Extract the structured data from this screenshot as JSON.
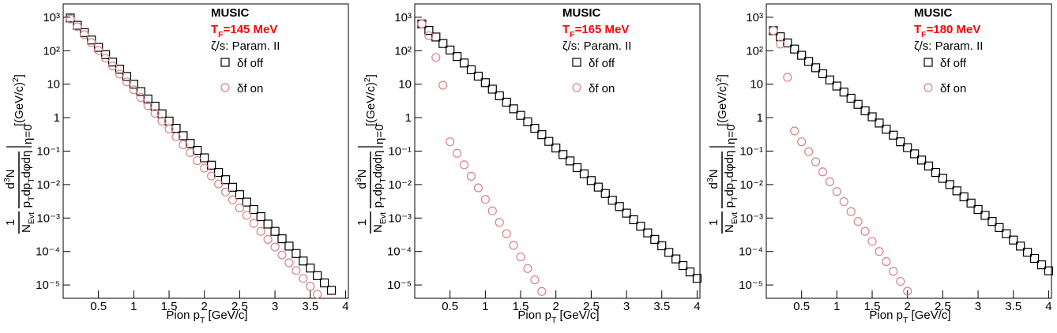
{
  "chart_data": [
    {
      "type": "scatter",
      "log_y": true,
      "title": "MUSIC",
      "temperature": {
        "symbol": "T",
        "subscript": "F",
        "text": "=145 MeV",
        "color": "#ff0000"
      },
      "viscosity": "ζ/s: Param. II",
      "x_label": {
        "text": "Pion p",
        "subscript": "T",
        "unit": " [GeV/c]"
      },
      "y_label": {
        "one": "1",
        "n": "N",
        "n_sub": "Evt",
        "d": "d",
        "d_sup": "3",
        "d_n": "N",
        "p": "p",
        "p_sub": "T",
        "dp": "dp",
        "dp_sub": "T",
        "angles": "dφdη",
        "eval": "η=0",
        "unit": "[(GeV/c)",
        "unit_sup": "2",
        "unit_end": "]"
      },
      "xlim": [
        0,
        4.04
      ],
      "ylim": [
        4e-06,
        2500
      ],
      "xticks": [
        0.5,
        1,
        1.5,
        2,
        2.5,
        3,
        3.5,
        4
      ],
      "yticks": [
        {
          "value": 1000,
          "label": "10³"
        },
        {
          "value": 100,
          "label": "10²"
        },
        10,
        1,
        {
          "value": 0.1,
          "label": "10⁻¹"
        },
        {
          "value": 0.01,
          "label": "10⁻²"
        },
        {
          "value": 0.001,
          "label": "10⁻³"
        },
        {
          "value": 0.0001,
          "label": "10⁻⁴"
        },
        {
          "value": 1e-05,
          "label": "10⁻⁵"
        }
      ],
      "x": [
        0.1,
        0.2,
        0.3,
        0.4,
        0.5,
        0.6,
        0.7,
        0.8,
        0.9,
        1.0,
        1.1,
        1.2,
        1.3,
        1.4,
        1.5,
        1.6,
        1.7,
        1.8,
        1.9,
        2.0,
        2.1,
        2.2,
        2.3,
        2.4,
        2.5,
        2.6,
        2.7,
        2.8,
        2.9,
        3.0,
        3.1,
        3.2,
        3.3,
        3.4,
        3.5,
        3.6,
        3.7,
        3.8
      ],
      "series": [
        {
          "name": "δf off",
          "marker": "square",
          "color": "#000000",
          "values": [
            950,
            575,
            347,
            209,
            126,
            76,
            46,
            28,
            17,
            10,
            6.0,
            3.6,
            2.2,
            1.3,
            0.79,
            0.48,
            0.29,
            0.17,
            0.105,
            0.063,
            0.038,
            0.023,
            0.014,
            0.0083,
            0.005,
            0.003,
            0.0018,
            0.0011,
            0.00066,
            0.0004,
            0.00024,
            0.000145,
            8.7e-05,
            5.2e-05,
            3.2e-05,
            1.9e-05,
            1.15e-05,
            6.9e-06
          ]
        },
        {
          "name": "δf on",
          "marker": "circle",
          "color": "#d9808a",
          "values": [
            891,
            519,
            302,
            176,
            102,
            60,
            35,
            20,
            11.7,
            6.8,
            4.0,
            2.3,
            1.35,
            0.79,
            0.46,
            0.27,
            0.155,
            0.09,
            0.052,
            0.031,
            0.018,
            0.0104,
            0.006,
            0.0035,
            0.002,
            0.0012,
            0.00069,
            0.0004,
            0.00023,
            0.000136,
            7.9e-05,
            4.6e-05,
            2.7e-05,
            1.57e-05,
            9.1e-06,
            5.3e-06,
            null,
            null
          ]
        }
      ]
    },
    {
      "type": "scatter",
      "log_y": true,
      "title": "MUSIC",
      "temperature": {
        "symbol": "T",
        "subscript": "F",
        "text": "=165 MeV",
        "color": "#ff0000"
      },
      "viscosity": "ζ/s: Param. II",
      "x_label": {
        "text": "Pion p",
        "subscript": "T",
        "unit": " [GeV/c]"
      },
      "y_label": {
        "one": "1",
        "n": "N",
        "n_sub": "Evt",
        "d": "d",
        "d_sup": "3",
        "d_n": "N",
        "p": "p",
        "p_sub": "T",
        "dp": "dp",
        "dp_sub": "T",
        "angles": "dφdη",
        "eval": "η=0",
        "unit": "[(GeV/c)",
        "unit_sup": "2",
        "unit_end": "]"
      },
      "xlim": [
        0,
        4.04
      ],
      "ylim": [
        4e-06,
        2500
      ],
      "xticks": [
        0.5,
        1,
        1.5,
        2,
        2.5,
        3,
        3.5,
        4
      ],
      "yticks": [
        {
          "value": 1000,
          "label": "10³"
        },
        {
          "value": 100,
          "label": "10²"
        },
        10,
        1,
        {
          "value": 0.1,
          "label": "10⁻¹"
        },
        {
          "value": 0.01,
          "label": "10⁻²"
        },
        {
          "value": 0.001,
          "label": "10⁻³"
        },
        {
          "value": 0.0001,
          "label": "10⁻⁴"
        },
        {
          "value": 1e-05,
          "label": "10⁻⁵"
        }
      ],
      "x": [
        0.1,
        0.2,
        0.3,
        0.4,
        0.5,
        0.6,
        0.7,
        0.8,
        0.9,
        1.0,
        1.1,
        1.2,
        1.3,
        1.4,
        1.5,
        1.6,
        1.7,
        1.8,
        1.9,
        2.0,
        2.1,
        2.2,
        2.3,
        2.4,
        2.5,
        2.6,
        2.7,
        2.8,
        2.9,
        3.0,
        3.1,
        3.2,
        3.3,
        3.4,
        3.5,
        3.6,
        3.7,
        3.8,
        3.9,
        4.0
      ],
      "series": [
        {
          "name": "δf off",
          "marker": "square",
          "color": "#000000",
          "values": [
            631,
            403,
            257,
            164,
            105,
            67,
            43,
            27,
            17.4,
            11.1,
            7.1,
            4.5,
            2.9,
            1.84,
            1.17,
            0.75,
            0.48,
            0.31,
            0.195,
            0.124,
            0.079,
            0.051,
            0.032,
            0.021,
            0.0132,
            0.0084,
            0.0054,
            0.0034,
            0.0022,
            0.0014,
            0.00089,
            0.00057,
            0.00036,
            0.00023,
            0.000148,
            9.4e-05,
            6e-05,
            3.8e-05,
            2.45e-05,
            1.57e-05
          ]
        },
        {
          "name": "δf on",
          "marker": "circle",
          "color": "#d9808a",
          "values": [
            631,
            282,
            63,
            9.3,
            0.19,
            0.086,
            0.039,
            0.0177,
            0.008,
            0.0036,
            0.00164,
            0.00074,
            0.00034,
            0.000153,
            6.9e-05,
            3.1e-05,
            1.42e-05,
            6.4e-06,
            null,
            null,
            null,
            null,
            null,
            null,
            null,
            null,
            null,
            null,
            null,
            null,
            null,
            null,
            null,
            null,
            null,
            null,
            null,
            null,
            null,
            null
          ]
        }
      ]
    },
    {
      "type": "scatter",
      "log_y": true,
      "title": "MUSIC",
      "temperature": {
        "symbol": "T",
        "subscript": "F",
        "text": "=180 MeV",
        "color": "#ff0000"
      },
      "viscosity": "ζ/s: Param. II",
      "x_label": {
        "text": "Pion p",
        "subscript": "T",
        "unit": " [GeV/c]"
      },
      "y_label": {
        "one": "1",
        "n": "N",
        "n_sub": "Evt",
        "d": "d",
        "d_sup": "3",
        "d_n": "N",
        "p": "p",
        "p_sub": "T",
        "dp": "dp",
        "dp_sub": "T",
        "angles": "dφdη",
        "eval": "η=0",
        "unit": "[(GeV/c)",
        "unit_sup": "2",
        "unit_end": "]"
      },
      "xlim": [
        0,
        4.04
      ],
      "ylim": [
        4e-06,
        2500
      ],
      "xticks": [
        0.5,
        1,
        1.5,
        2,
        2.5,
        3,
        3.5,
        4
      ],
      "yticks": [
        {
          "value": 1000,
          "label": "10³"
        },
        {
          "value": 100,
          "label": "10²"
        },
        10,
        1,
        {
          "value": 0.1,
          "label": "10⁻¹"
        },
        {
          "value": 0.01,
          "label": "10⁻²"
        },
        {
          "value": 0.001,
          "label": "10⁻³"
        },
        {
          "value": 0.0001,
          "label": "10⁻⁴"
        },
        {
          "value": 1e-05,
          "label": "10⁻⁵"
        }
      ],
      "x": [
        0.1,
        0.2,
        0.3,
        0.4,
        0.5,
        0.6,
        0.7,
        0.8,
        0.9,
        1.0,
        1.1,
        1.2,
        1.3,
        1.4,
        1.5,
        1.6,
        1.7,
        1.8,
        1.9,
        2.0,
        2.1,
        2.2,
        2.3,
        2.4,
        2.5,
        2.6,
        2.7,
        2.8,
        2.9,
        3.0,
        3.1,
        3.2,
        3.3,
        3.4,
        3.5,
        3.6,
        3.7,
        3.8,
        3.9,
        4.0
      ],
      "series": [
        {
          "name": "δf off",
          "marker": "square",
          "color": "#000000",
          "values": [
            398,
            261,
            171,
            112,
            73,
            48,
            31,
            20.5,
            13.4,
            8.8,
            5.8,
            3.8,
            2.5,
            1.6,
            1.06,
            0.69,
            0.45,
            0.3,
            0.19,
            0.127,
            0.083,
            0.054,
            0.036,
            0.023,
            0.0153,
            0.01,
            0.0065,
            0.0043,
            0.0028,
            0.0018,
            0.0012,
            0.00079,
            0.00052,
            0.00034,
            0.00022,
            0.000145,
            9.5e-05,
            6.2e-05,
            4e-05,
            2.65e-05
          ]
        },
        {
          "name": "δf on",
          "marker": "circle",
          "color": "#d9808a",
          "values": [
            398,
            158,
            16,
            0.4,
            0.19,
            0.096,
            0.048,
            0.024,
            0.0122,
            0.0062,
            0.0031,
            0.00156,
            0.00079,
            0.0004,
            0.0002,
            0.0001,
            5e-05,
            2.55e-05,
            1.28e-05,
            6.5e-06,
            null,
            null,
            null,
            null,
            null,
            null,
            null,
            null,
            null,
            null,
            null,
            null,
            null,
            null,
            null,
            null,
            null,
            null,
            null,
            null
          ]
        }
      ]
    }
  ]
}
